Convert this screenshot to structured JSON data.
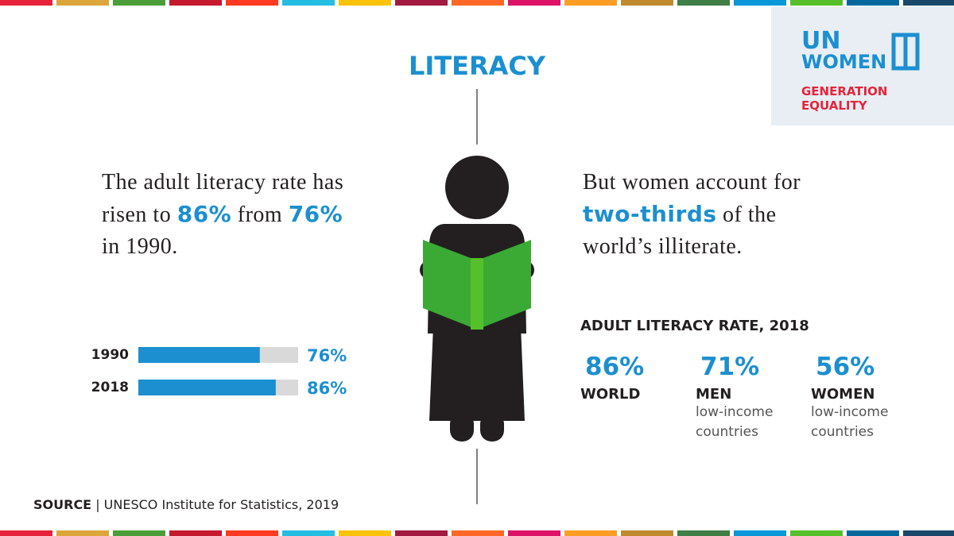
{
  "title": "LITERACY",
  "logo": {
    "line1": "UN",
    "line2": "WOMEN",
    "tagline": "GENERATION EQUALITY"
  },
  "left_text": [
    {
      "text": "The adult literacy rate has risen to "
    },
    {
      "text": "86%",
      "highlight": true
    },
    {
      "text": " from "
    },
    {
      "text": "76%",
      "highlight": true
    },
    {
      "text": " in 1990."
    }
  ],
  "bar_chart": {
    "type": "bar",
    "orientation": "horizontal",
    "categories": [
      "1990",
      "2018"
    ],
    "values": [
      76,
      86
    ],
    "value_labels": [
      "76%",
      "86%"
    ],
    "xlim": [
      0,
      100
    ],
    "color": "#1b8fd0",
    "track_color": "#d9d9d9"
  },
  "right_text": [
    {
      "text": "But women account for "
    },
    {
      "text": "two-thirds",
      "highlight": true
    },
    {
      "text": " of the world’s illiterate."
    }
  ],
  "stats": {
    "heading": "ADULT LITERACY RATE, 2018",
    "items": [
      {
        "value": "86%",
        "label": "WORLD"
      },
      {
        "value": "71%",
        "label": "MEN",
        "sublabel": "low-income countries"
      },
      {
        "value": "56%",
        "label": "WOMEN",
        "sublabel": "low-income countries"
      }
    ]
  },
  "source": {
    "label": "SOURCE",
    "text": "| UNESCO Institute for Statistics, 2019"
  }
}
